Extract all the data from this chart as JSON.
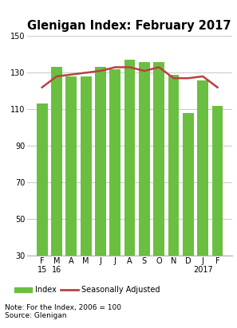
{
  "title": "Glenigan Index: February 2017",
  "categories": [
    "F\n15",
    "M\n16",
    "A",
    "M",
    "J",
    "J",
    "A",
    "S",
    "O",
    "N",
    "D",
    "J\n2017",
    "F"
  ],
  "bar_values": [
    113,
    133,
    128,
    128,
    133,
    132,
    137,
    136,
    136,
    129,
    108,
    126,
    112
  ],
  "line_values": [
    122,
    128,
    129,
    130,
    131,
    133,
    133,
    131,
    133,
    127,
    127,
    128,
    122
  ],
  "bar_color": "#6abf40",
  "line_color": "#b94040",
  "ylim": [
    30,
    150
  ],
  "yticks": [
    30,
    50,
    70,
    90,
    110,
    130,
    150
  ],
  "grid_color": "#cccccc",
  "background_color": "#ffffff",
  "note": "Note: For the Index, 2006 = 100",
  "source": "Source: Glenigan",
  "legend_bar_label": "Index",
  "legend_line_label": "Seasonally Adjusted",
  "title_fontsize": 10.5,
  "tick_fontsize": 7,
  "note_fontsize": 6.5
}
